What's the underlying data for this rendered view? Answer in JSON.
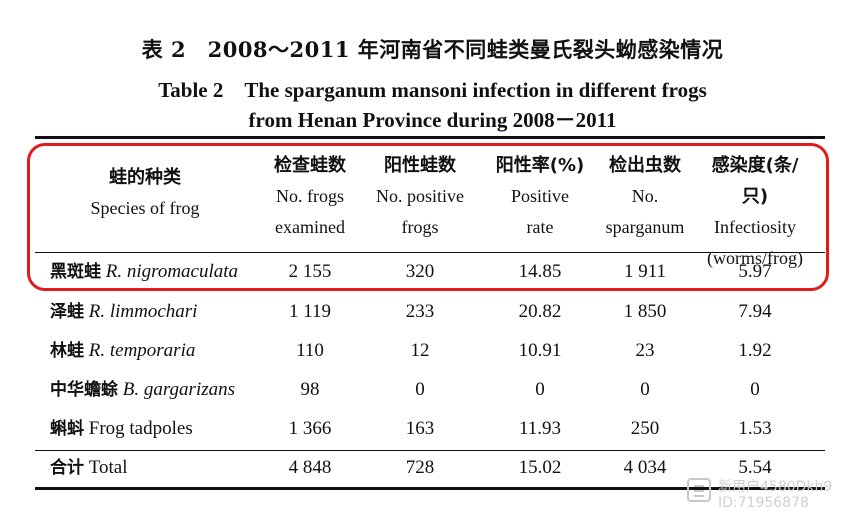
{
  "title": {
    "cn": "表 2　2008～2011 年河南省不同蛙类曼氏裂头蚴感染情况",
    "en_line1": "Table 2　The sparganum mansoni infection in different frogs",
    "en_line2": "from Henan Province during 2008－2011"
  },
  "headers": {
    "species": {
      "cn": "蛙的种类",
      "en": "Species of frog"
    },
    "examined": {
      "cn": "检查蛙数",
      "en1": "No. frogs",
      "en2": "examined"
    },
    "positive": {
      "cn": "阳性蛙数",
      "en1": "No. positive",
      "en2": "frogs"
    },
    "rate": {
      "cn": "阳性率(%)",
      "en1": "Positive",
      "en2": "rate"
    },
    "sparganum": {
      "cn": "检出虫数",
      "en1": "No.",
      "en2": "sparganum"
    },
    "infectiosity": {
      "cn": "感染度(条/只)",
      "en1": "Infectiosity",
      "en2": "(worms/frog)"
    }
  },
  "rows": [
    {
      "cn": "黑斑蛙",
      "sci": "R. nigromaculata",
      "examined": "2 155",
      "positive": "320",
      "rate": "14.85",
      "sparganum": "1 911",
      "infectiosity": "5.97"
    },
    {
      "cn": "泽蛙",
      "sci": "R. limmochari",
      "examined": "1 119",
      "positive": "233",
      "rate": "20.82",
      "sparganum": "1 850",
      "infectiosity": "7.94"
    },
    {
      "cn": "林蛙",
      "sci": "R. temporaria",
      "examined": "110",
      "positive": "12",
      "rate": "10.91",
      "sparganum": "23",
      "infectiosity": "1.92"
    },
    {
      "cn": "中华蟾蜍",
      "sci": "B. gargarizans",
      "examined": "98",
      "positive": "0",
      "rate": "0",
      "sparganum": "0",
      "infectiosity": "0"
    },
    {
      "cn": "蝌蚪",
      "sci": "Frog tadpoles",
      "examined": "1 366",
      "positive": "163",
      "rate": "11.93",
      "sparganum": "250",
      "infectiosity": "1.53"
    }
  ],
  "total": {
    "cn": "合计",
    "en": "Total",
    "examined": "4 848",
    "positive": "728",
    "rate": "15.02",
    "sparganum": "4 034",
    "infectiosity": "5.54"
  },
  "watermark": {
    "line1": "新用户4580Dkh9",
    "line2": "ID:71956878",
    "icon": "article-icon"
  },
  "colors": {
    "highlight": "#e21b1b"
  }
}
